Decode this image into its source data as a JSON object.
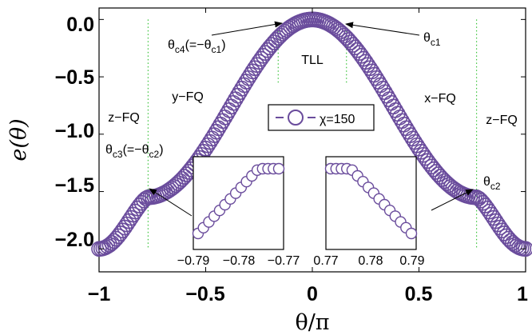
{
  "chart_data": {
    "type": "scatter",
    "xlabel": "θ/π",
    "ylabel": "e(θ)",
    "xlim": [
      -1,
      1
    ],
    "ylim": [
      -2.2,
      0.1
    ],
    "x_ticks": [
      "−1",
      "−0.5",
      "0",
      "0.5",
      "1"
    ],
    "y_ticks": [
      "0.0",
      "−0.5",
      "−1.0",
      "−1.5",
      "−2.0"
    ],
    "legend": {
      "label": "χ=150",
      "position": "center-right"
    },
    "series": [
      {
        "name": "χ=150",
        "color": "#6a4c9c",
        "marker": "circle-open"
      }
    ],
    "phase_boundaries": [
      -0.77,
      -0.16,
      0.16,
      0.77
    ],
    "regions": [
      {
        "label": "z−FQ",
        "x": -0.88
      },
      {
        "label": "y−FQ",
        "x": -0.5
      },
      {
        "label": "TLL",
        "x": 0
      },
      {
        "label": "x−FQ",
        "x": 0.5
      },
      {
        "label": "z−FQ",
        "x": 0.88
      }
    ],
    "annotations": {
      "c4_main": "θ",
      "c4_sub": "c4",
      "c4_rest": "(=−θ",
      "c4_sub2": "c1",
      "c4_close": ")",
      "c1_main": "θ",
      "c1_sub": "c1",
      "c3_main": "θ",
      "c3_sub": "c3",
      "c3_rest": "(=−θ",
      "c3_sub2": "c2",
      "c3_close": ")",
      "c2_main": "θ",
      "c2_sub": "c2"
    },
    "inset_left": {
      "xlim": [
        -0.79,
        -0.77
      ],
      "x_ticks": [
        "−0.79",
        "−0.78",
        "−0.77"
      ]
    },
    "inset_right": {
      "xlim": [
        0.77,
        0.79
      ],
      "x_ticks": [
        "0.77",
        "0.78",
        "0.79"
      ]
    }
  }
}
